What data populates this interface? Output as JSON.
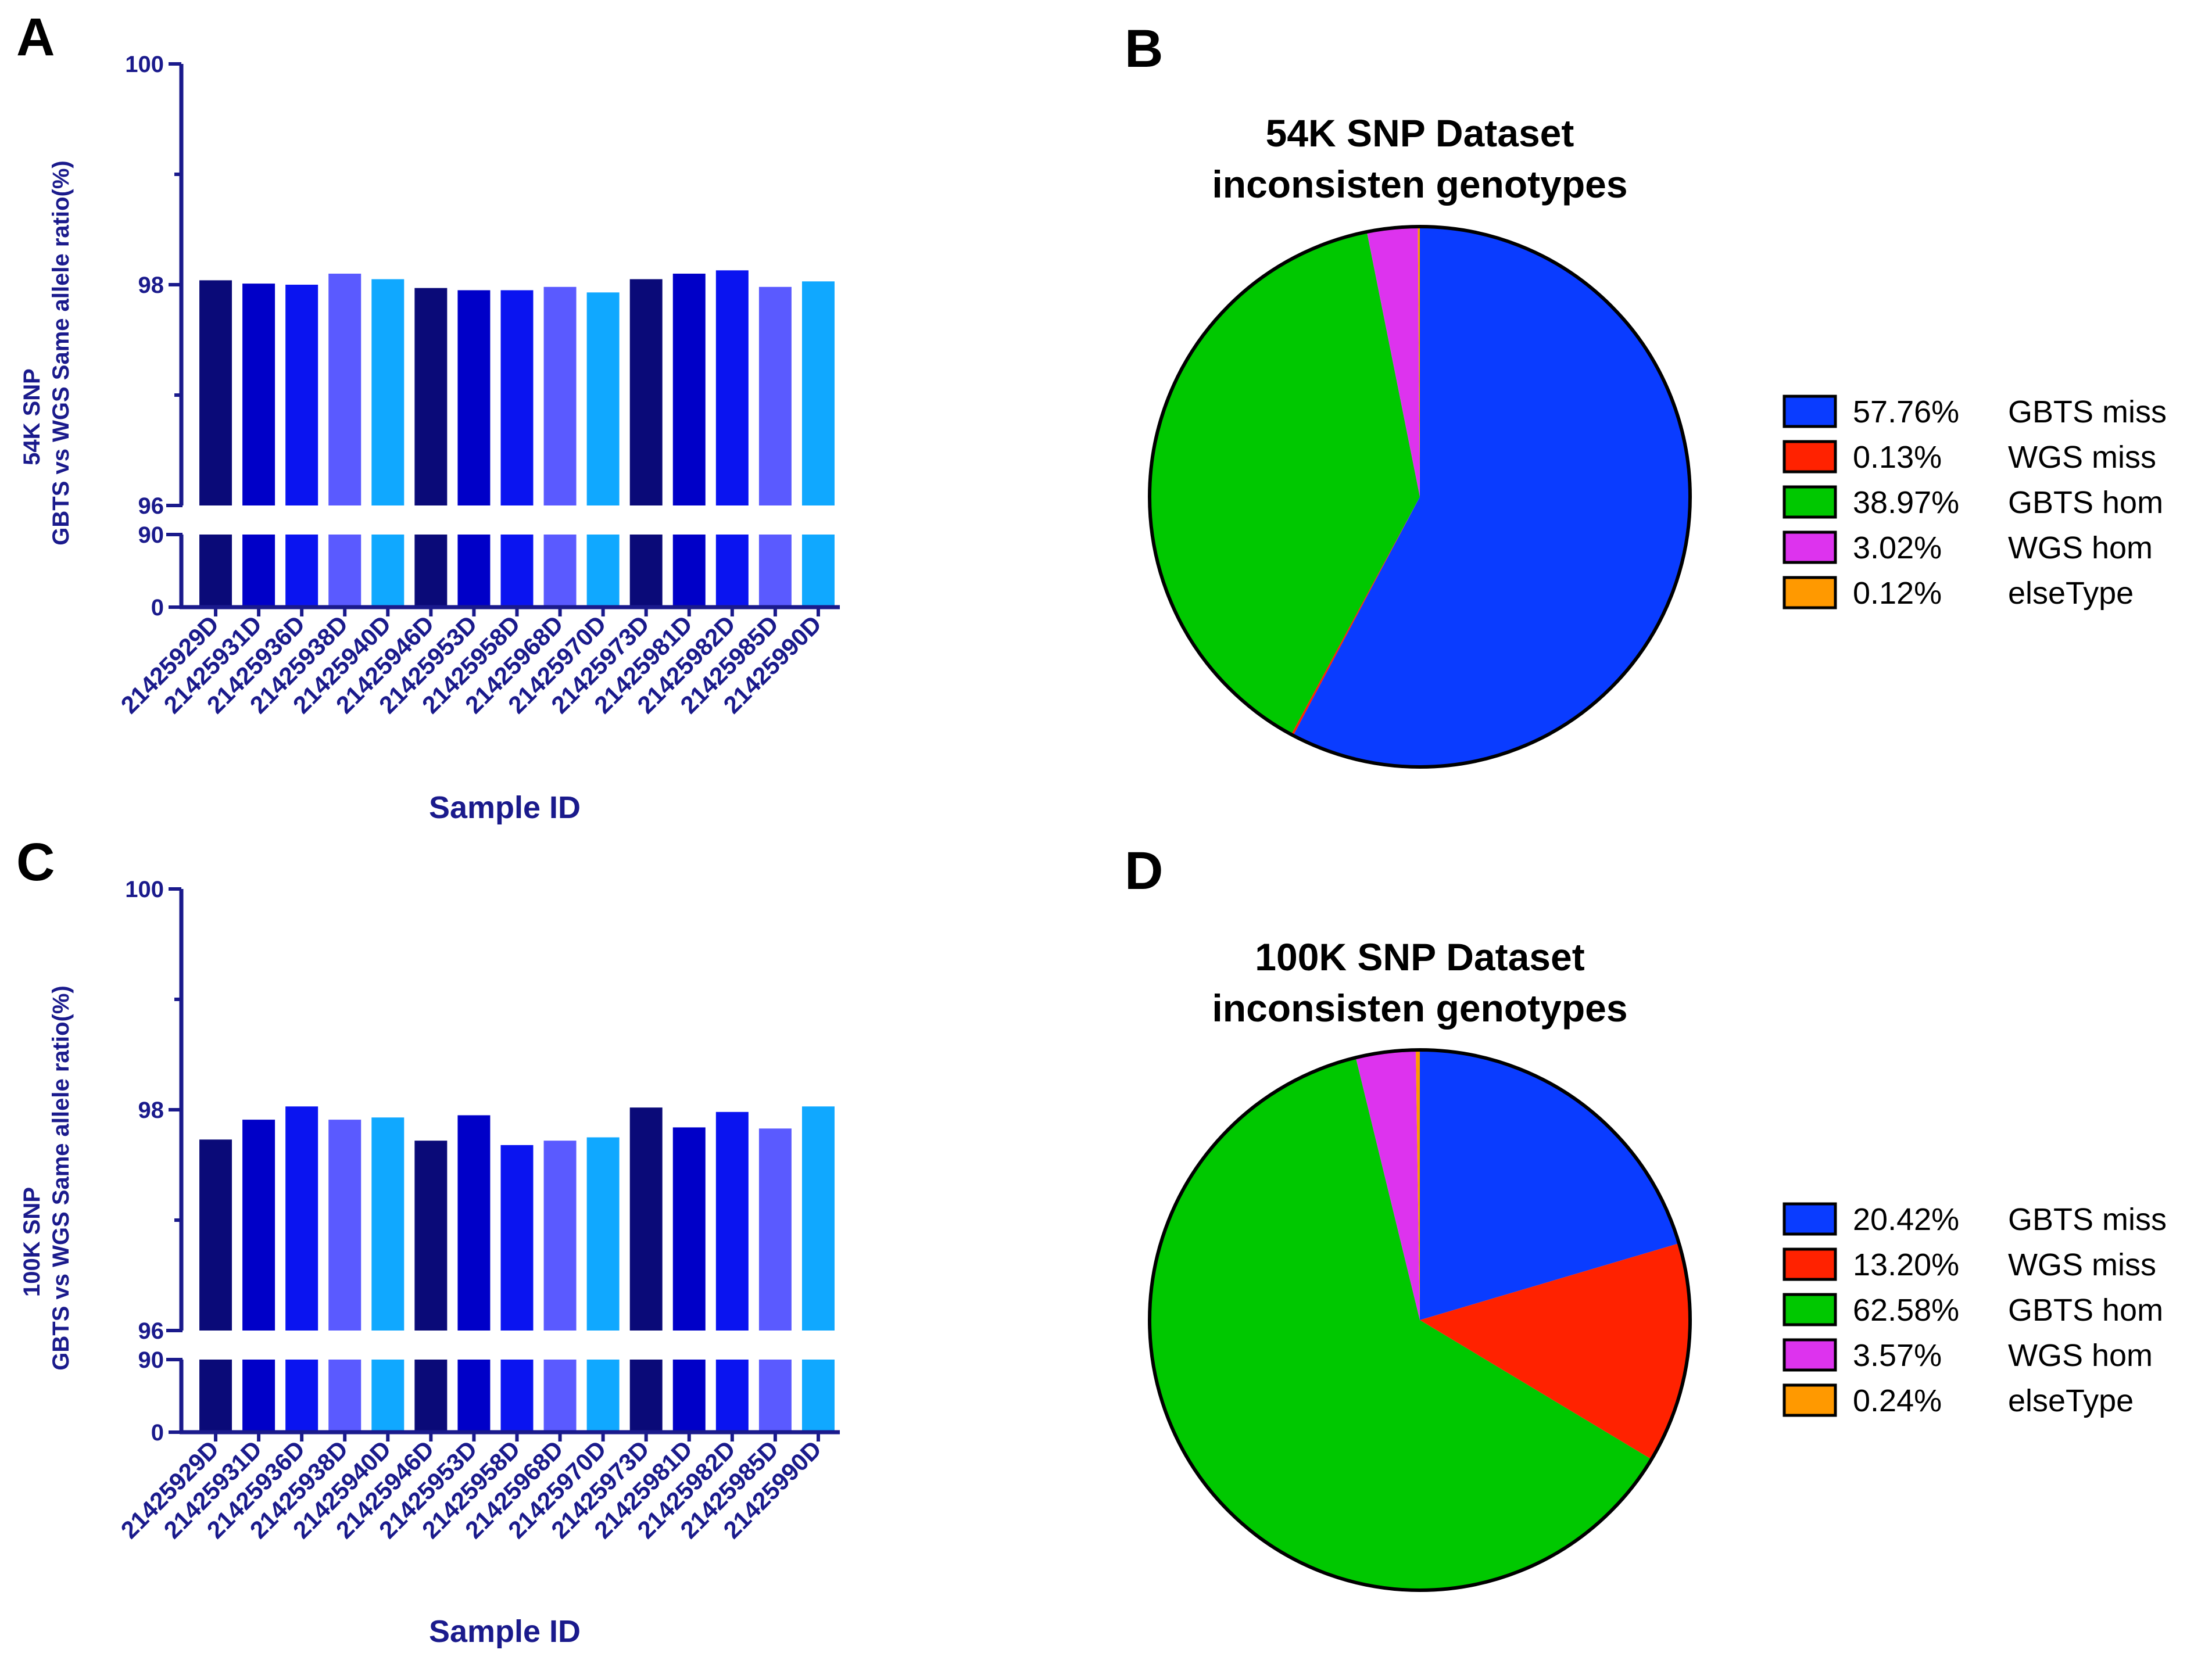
{
  "colors": {
    "axis": "#1a1a8c",
    "bar_palette": [
      "#0a0a78",
      "#0000c8",
      "#0a14f0",
      "#5a5aff",
      "#10a8ff"
    ],
    "pie_palette": [
      "#0a3cff",
      "#ff2200",
      "#00c800",
      "#dd33ee",
      "#ff9900"
    ],
    "pie_outline": "#000000"
  },
  "chart_data": [
    {
      "id": "panel-a",
      "panel_label": "A",
      "type": "bar",
      "title": "",
      "ylabel_line1": "54K SNP",
      "ylabel_line2": "GBTS vs WGS Same allele ratio(%)",
      "xlabel": "Sample ID",
      "categories": [
        "21425929D",
        "21425931D",
        "21425936D",
        "21425938D",
        "21425940D",
        "21425946D",
        "21425953D",
        "21425958D",
        "21425968D",
        "21425970D",
        "21425973D",
        "21425981D",
        "21425982D",
        "21425985D",
        "21425990D"
      ],
      "values": [
        98.04,
        98.01,
        98.0,
        98.1,
        98.05,
        97.97,
        97.95,
        97.95,
        97.98,
        97.93,
        98.05,
        98.1,
        98.13,
        97.98,
        98.03
      ],
      "ylim_upper": [
        96,
        100
      ],
      "yticks_upper": [
        96,
        98,
        100
      ],
      "ylim_lower": [
        0,
        90
      ],
      "yticks_lower": [
        0,
        90
      ],
      "grid": false
    },
    {
      "id": "panel-c",
      "panel_label": "C",
      "type": "bar",
      "title": "",
      "ylabel_line1": "100K SNP",
      "ylabel_line2": "GBTS vs WGS Same allele ratio(%)",
      "xlabel": "Sample ID",
      "categories": [
        "21425929D",
        "21425931D",
        "21425936D",
        "21425938D",
        "21425940D",
        "21425946D",
        "21425953D",
        "21425958D",
        "21425968D",
        "21425970D",
        "21425973D",
        "21425981D",
        "21425982D",
        "21425985D",
        "21425990D"
      ],
      "values": [
        97.73,
        97.91,
        98.03,
        97.91,
        97.93,
        97.72,
        97.95,
        97.68,
        97.72,
        97.75,
        98.02,
        97.84,
        97.98,
        97.83,
        98.03
      ],
      "ylim_upper": [
        96,
        100
      ],
      "yticks_upper": [
        96,
        98,
        100
      ],
      "ylim_lower": [
        0,
        90
      ],
      "yticks_lower": [
        0,
        90
      ],
      "grid": false
    },
    {
      "id": "panel-b",
      "panel_label": "B",
      "type": "pie",
      "title_line1": "54K SNP Dataset",
      "title_line2": "inconsisten genotypes",
      "start_angle_deg": 0,
      "direction": "clockwise",
      "legend_position": "right",
      "slices": [
        {
          "percent_label": "57.76%",
          "name": "GBTS miss",
          "value": 57.76
        },
        {
          "percent_label": "0.13%",
          "name": "WGS  miss",
          "value": 0.13
        },
        {
          "percent_label": "38.97%",
          "name": "GBTS hom",
          "value": 38.97
        },
        {
          "percent_label": "3.02%",
          "name": "WGS  hom",
          "value": 3.02
        },
        {
          "percent_label": "0.12%",
          "name": "elseType",
          "value": 0.12
        }
      ]
    },
    {
      "id": "panel-d",
      "panel_label": "D",
      "type": "pie",
      "title_line1": "100K SNP Dataset",
      "title_line2": "inconsisten genotypes",
      "start_angle_deg": 0,
      "direction": "clockwise",
      "legend_position": "right",
      "slices": [
        {
          "percent_label": "20.42%",
          "name": "GBTS miss",
          "value": 20.42
        },
        {
          "percent_label": "13.20%",
          "name": "WGS  miss",
          "value": 13.2
        },
        {
          "percent_label": "62.58%",
          "name": "GBTS hom",
          "value": 62.58
        },
        {
          "percent_label": "3.57%",
          "name": "WGS  hom",
          "value": 3.57
        },
        {
          "percent_label": "0.24%",
          "name": "elseType",
          "value": 0.24
        }
      ]
    }
  ]
}
